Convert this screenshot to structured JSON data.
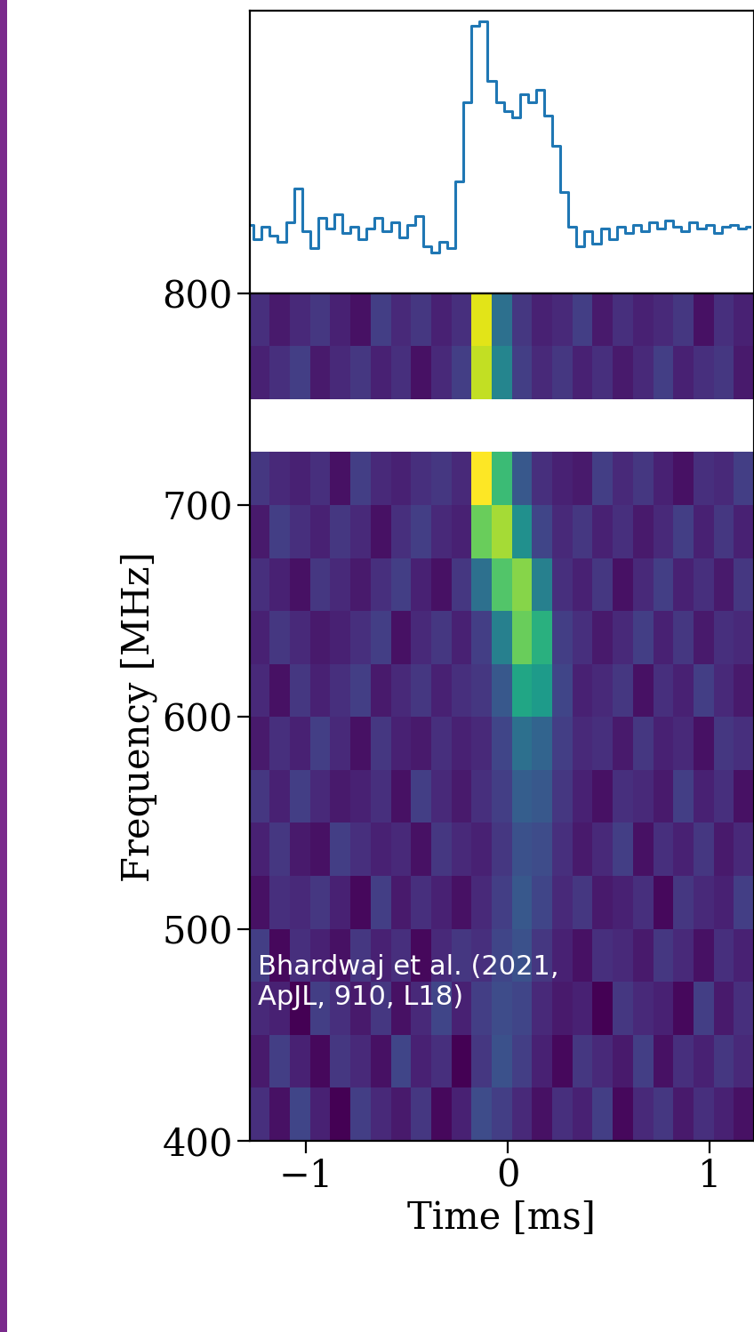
{
  "chart_data": [
    {
      "type": "line",
      "x": [
        -1.28,
        -1.24,
        -1.2,
        -1.16,
        -1.12,
        -1.08,
        -1.04,
        -1.0,
        -0.96,
        -0.92,
        -0.88,
        -0.84,
        -0.8,
        -0.76,
        -0.72,
        -0.68,
        -0.64,
        -0.6,
        -0.56,
        -0.52,
        -0.48,
        -0.44,
        -0.4,
        -0.36,
        -0.32,
        -0.28,
        -0.24,
        -0.2,
        -0.16,
        -0.12,
        -0.08,
        -0.04,
        0.0,
        0.04,
        0.08,
        0.12,
        0.16,
        0.2,
        0.24,
        0.28,
        0.32,
        0.36,
        0.4,
        0.44,
        0.48,
        0.52,
        0.56,
        0.6,
        0.64,
        0.68,
        0.72,
        0.76,
        0.8,
        0.84,
        0.88,
        0.92,
        0.96,
        1.0,
        1.04,
        1.08,
        1.12,
        1.16,
        1.2
      ],
      "values": [
        0.05,
        -0.02,
        0.04,
        0.0,
        -0.03,
        0.06,
        0.22,
        0.02,
        -0.06,
        0.08,
        0.03,
        0.1,
        0.01,
        0.04,
        -0.02,
        0.03,
        0.08,
        0.02,
        0.06,
        -0.01,
        0.05,
        0.09,
        -0.05,
        -0.08,
        -0.03,
        -0.06,
        0.25,
        0.62,
        0.98,
        1.0,
        0.72,
        0.62,
        0.58,
        0.55,
        0.66,
        0.62,
        0.68,
        0.56,
        0.42,
        0.2,
        0.04,
        -0.05,
        0.02,
        -0.04,
        0.03,
        -0.02,
        0.04,
        0.01,
        0.05,
        0.02,
        0.06,
        0.03,
        0.07,
        0.04,
        0.02,
        0.06,
        0.03,
        0.05,
        0.01,
        0.04,
        0.05,
        0.03,
        0.04
      ],
      "color": "#1f77b4",
      "line_style": "steps",
      "xlim": [
        -1.28,
        1.22
      ],
      "ylim": [
        -0.27,
        1.05
      ],
      "xticks": [],
      "yticks": [],
      "tick_labels": false
    },
    {
      "type": "heatmap",
      "x_label": "Time [ms]",
      "y_label": "Frequency [MHz]",
      "annotation": "Bhardwaj et al. (2021,\nApJL, 910, L18)",
      "xlim": [
        -1.28,
        1.22
      ],
      "ylim": [
        400,
        800
      ],
      "xticks": [
        {
          "value": -1,
          "label": "−1"
        },
        0,
        1
      ],
      "yticks": [
        400,
        500,
        600,
        700,
        800
      ],
      "x_bins": [
        -1.28,
        -1.18,
        -1.08,
        -0.98,
        -0.88,
        -0.78,
        -0.68,
        -0.58,
        -0.48,
        -0.38,
        -0.28,
        -0.18,
        -0.08,
        0.02,
        0.12,
        0.22,
        0.32,
        0.42,
        0.52,
        0.62,
        0.72,
        0.82,
        0.92,
        1.02,
        1.12,
        1.22
      ],
      "y_bins": [
        400,
        425,
        450,
        475,
        500,
        525,
        550,
        575,
        600,
        625,
        650,
        675,
        700,
        725,
        750,
        775,
        800
      ],
      "cells": [
        [
          0.42,
          0.38,
          0.45,
          0.4,
          0.36,
          0.44,
          0.41,
          0.39,
          0.43,
          0.37,
          0.4,
          0.46,
          0.44,
          0.41,
          0.38,
          0.42,
          0.4,
          0.44,
          0.37,
          0.41,
          0.43,
          0.39,
          0.42,
          0.4,
          0.38
        ],
        [
          0.39,
          0.44,
          0.4,
          0.37,
          0.43,
          0.41,
          0.38,
          0.45,
          0.4,
          0.42,
          0.36,
          0.43,
          0.47,
          0.44,
          0.4,
          0.37,
          0.43,
          0.41,
          0.39,
          0.44,
          0.38,
          0.42,
          0.4,
          0.43,
          0.41
        ],
        [
          0.41,
          0.4,
          0.36,
          0.44,
          0.42,
          0.39,
          0.43,
          0.38,
          0.41,
          0.45,
          0.4,
          0.44,
          0.46,
          0.45,
          0.41,
          0.39,
          0.4,
          0.36,
          0.43,
          0.41,
          0.4,
          0.37,
          0.44,
          0.39,
          0.42
        ],
        [
          0.44,
          0.37,
          0.42,
          0.4,
          0.38,
          0.43,
          0.4,
          0.42,
          0.37,
          0.41,
          0.43,
          0.42,
          0.45,
          0.47,
          0.43,
          0.4,
          0.38,
          0.42,
          0.41,
          0.39,
          0.43,
          0.41,
          0.38,
          0.42,
          0.4
        ],
        [
          0.38,
          0.42,
          0.41,
          0.43,
          0.4,
          0.37,
          0.44,
          0.39,
          0.42,
          0.4,
          0.38,
          0.41,
          0.44,
          0.48,
          0.45,
          0.41,
          0.43,
          0.39,
          0.4,
          0.42,
          0.37,
          0.43,
          0.41,
          0.4,
          0.44
        ],
        [
          0.4,
          0.43,
          0.39,
          0.38,
          0.44,
          0.42,
          0.4,
          0.41,
          0.38,
          0.43,
          0.41,
          0.4,
          0.43,
          0.47,
          0.46,
          0.42,
          0.39,
          0.41,
          0.44,
          0.38,
          0.42,
          0.4,
          0.43,
          0.39,
          0.41
        ],
        [
          0.43,
          0.4,
          0.44,
          0.41,
          0.39,
          0.4,
          0.42,
          0.38,
          0.44,
          0.41,
          0.39,
          0.42,
          0.44,
          0.49,
          0.48,
          0.43,
          0.4,
          0.38,
          0.42,
          0.41,
          0.39,
          0.44,
          0.4,
          0.42,
          0.38
        ],
        [
          0.39,
          0.42,
          0.4,
          0.44,
          0.41,
          0.38,
          0.43,
          0.4,
          0.39,
          0.42,
          0.4,
          0.41,
          0.45,
          0.52,
          0.5,
          0.44,
          0.41,
          0.42,
          0.39,
          0.43,
          0.4,
          0.41,
          0.38,
          0.43,
          0.42
        ],
        [
          0.41,
          0.38,
          0.43,
          0.4,
          0.42,
          0.44,
          0.39,
          0.41,
          0.43,
          0.4,
          0.42,
          0.43,
          0.48,
          0.62,
          0.6,
          0.45,
          0.4,
          0.41,
          0.43,
          0.38,
          0.42,
          0.4,
          0.44,
          0.41,
          0.39
        ],
        [
          0.4,
          0.43,
          0.41,
          0.39,
          0.4,
          0.42,
          0.44,
          0.38,
          0.41,
          0.43,
          0.4,
          0.44,
          0.55,
          0.7,
          0.64,
          0.44,
          0.42,
          0.39,
          0.41,
          0.44,
          0.4,
          0.43,
          0.39,
          0.42,
          0.41
        ],
        [
          0.42,
          0.4,
          0.38,
          0.43,
          0.41,
          0.39,
          0.42,
          0.44,
          0.4,
          0.38,
          0.43,
          0.52,
          0.68,
          0.72,
          0.55,
          0.42,
          0.4,
          0.43,
          0.38,
          0.41,
          0.44,
          0.4,
          0.42,
          0.39,
          0.43
        ],
        [
          0.39,
          0.44,
          0.42,
          0.4,
          0.43,
          0.41,
          0.38,
          0.42,
          0.44,
          0.41,
          0.4,
          0.7,
          0.74,
          0.58,
          0.45,
          0.41,
          0.43,
          0.4,
          0.42,
          0.39,
          0.41,
          0.44,
          0.4,
          0.43,
          0.4
        ],
        [
          0.43,
          0.41,
          0.4,
          0.42,
          0.38,
          0.44,
          0.41,
          0.4,
          0.42,
          0.43,
          0.41,
          0.8,
          0.66,
          0.48,
          0.42,
          0.4,
          0.39,
          0.44,
          0.41,
          0.43,
          0.4,
          0.38,
          0.42,
          0.41,
          0.44
        ],
        [
          null,
          null,
          null,
          null,
          null,
          null,
          null,
          null,
          null,
          null,
          null,
          null,
          null,
          null,
          null,
          null,
          null,
          null,
          null,
          null,
          null,
          null,
          null,
          null,
          null
        ],
        [
          0.4,
          0.42,
          0.44,
          0.39,
          0.41,
          0.43,
          0.4,
          0.42,
          0.38,
          0.41,
          0.44,
          0.76,
          0.56,
          0.44,
          0.41,
          0.43,
          0.4,
          0.42,
          0.39,
          0.41,
          0.44,
          0.4,
          0.42,
          0.43,
          0.39
        ],
        [
          0.42,
          0.39,
          0.41,
          0.43,
          0.4,
          0.38,
          0.44,
          0.41,
          0.43,
          0.4,
          0.42,
          0.78,
          0.52,
          0.43,
          0.4,
          0.41,
          0.44,
          0.39,
          0.42,
          0.4,
          0.41,
          0.43,
          0.38,
          0.42,
          0.4
        ]
      ]
    }
  ]
}
